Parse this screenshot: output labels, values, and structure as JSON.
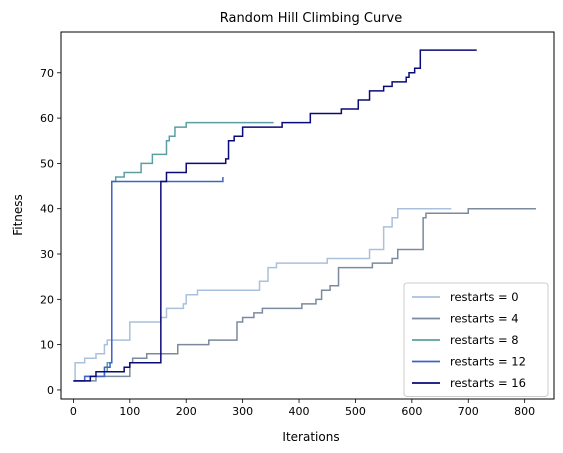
{
  "chart_data": {
    "type": "line",
    "title": "Random Hill Climbing Curve",
    "xlabel": "Iterations",
    "ylabel": "Fitness",
    "xlim": [
      -22,
      852
    ],
    "ylim": [
      -2,
      79
    ],
    "xticks": [
      0,
      100,
      200,
      300,
      400,
      500,
      600,
      700,
      800
    ],
    "yticks": [
      0,
      10,
      20,
      30,
      40,
      50,
      60,
      70
    ],
    "grid": false,
    "legend_position": "lower-right",
    "series": [
      {
        "name": "restarts = 0",
        "color": "#a9c1dc",
        "points": [
          [
            0,
            2
          ],
          [
            3,
            6
          ],
          [
            20,
            7
          ],
          [
            40,
            8
          ],
          [
            55,
            10
          ],
          [
            60,
            11
          ],
          [
            100,
            15
          ],
          [
            155,
            16
          ],
          [
            165,
            18
          ],
          [
            195,
            19
          ],
          [
            200,
            21
          ],
          [
            220,
            22
          ],
          [
            330,
            24
          ],
          [
            345,
            27
          ],
          [
            360,
            28
          ],
          [
            450,
            29
          ],
          [
            525,
            31
          ],
          [
            550,
            36
          ],
          [
            565,
            38
          ],
          [
            575,
            40
          ],
          [
            670,
            40
          ]
        ]
      },
      {
        "name": "restarts = 4",
        "color": "#7b8a9e",
        "points": [
          [
            0,
            2
          ],
          [
            40,
            3
          ],
          [
            100,
            6
          ],
          [
            105,
            7
          ],
          [
            130,
            8
          ],
          [
            185,
            10
          ],
          [
            240,
            11
          ],
          [
            290,
            15
          ],
          [
            300,
            16
          ],
          [
            320,
            17
          ],
          [
            335,
            18
          ],
          [
            405,
            19
          ],
          [
            430,
            20
          ],
          [
            440,
            22
          ],
          [
            455,
            23
          ],
          [
            470,
            27
          ],
          [
            530,
            28
          ],
          [
            565,
            29
          ],
          [
            575,
            31
          ],
          [
            620,
            38
          ],
          [
            625,
            39
          ],
          [
            670,
            39
          ],
          [
            700,
            40
          ],
          [
            820,
            40
          ]
        ]
      },
      {
        "name": "restarts = 8",
        "color": "#5b9fa3",
        "points": [
          [
            0,
            2
          ],
          [
            20,
            3
          ],
          [
            55,
            4
          ],
          [
            60,
            6
          ],
          [
            68,
            46
          ],
          [
            75,
            47
          ],
          [
            90,
            48
          ],
          [
            120,
            50
          ],
          [
            140,
            52
          ],
          [
            165,
            55
          ],
          [
            170,
            56
          ],
          [
            180,
            58
          ],
          [
            200,
            59
          ],
          [
            355,
            59
          ]
        ]
      },
      {
        "name": "restarts = 12",
        "color": "#3f64c6",
        "points": [
          [
            0,
            2
          ],
          [
            20,
            3
          ],
          [
            55,
            5
          ],
          [
            65,
            6
          ],
          [
            68,
            46
          ],
          [
            265,
            47
          ]
        ]
      },
      {
        "name": "restarts = 16",
        "color": "#0a0a78",
        "points": [
          [
            0,
            2
          ],
          [
            30,
            3
          ],
          [
            40,
            4
          ],
          [
            90,
            5
          ],
          [
            100,
            6
          ],
          [
            155,
            46
          ],
          [
            165,
            48
          ],
          [
            200,
            50
          ],
          [
            270,
            51
          ],
          [
            275,
            55
          ],
          [
            285,
            56
          ],
          [
            300,
            58
          ],
          [
            370,
            59
          ],
          [
            420,
            61
          ],
          [
            475,
            62
          ],
          [
            505,
            64
          ],
          [
            525,
            66
          ],
          [
            550,
            67
          ],
          [
            565,
            68
          ],
          [
            590,
            69
          ],
          [
            595,
            70
          ],
          [
            605,
            71
          ],
          [
            615,
            75
          ],
          [
            715,
            75
          ]
        ]
      }
    ]
  }
}
